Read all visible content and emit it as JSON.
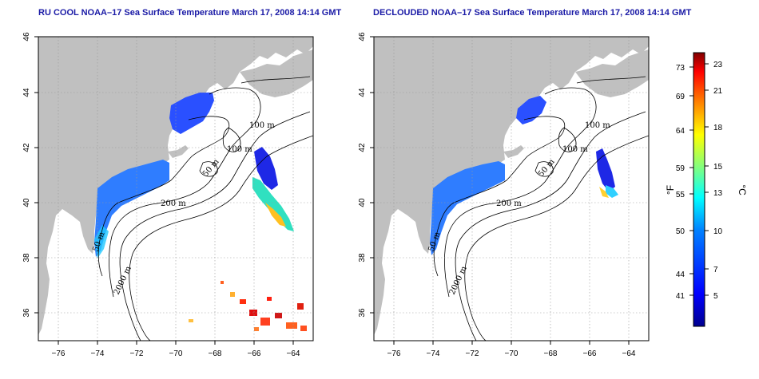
{
  "panels": [
    {
      "title": "RU COOL NOAA–17 Sea Surface Temperature March 17, 2008 14:14 GMT",
      "contour_labels": [
        "100 m",
        "100 m",
        "50 m",
        "200 m",
        "50 m",
        "2000 m"
      ]
    },
    {
      "title": "DECLOUDED NOAA–17 Sea Surface Temperature March 17, 2008 14:14 GMT",
      "contour_labels": [
        "100 m",
        "100 m",
        "50 m",
        "200 m",
        "50 m",
        "2000 m"
      ]
    }
  ],
  "axes": {
    "x_ticks": [
      "−76",
      "−74",
      "−72",
      "−70",
      "−68",
      "−66",
      "−64"
    ],
    "y_ticks": [
      "46",
      "44",
      "42",
      "40",
      "38",
      "36"
    ],
    "x_range": [
      -77,
      -63
    ],
    "y_range": [
      35,
      46
    ]
  },
  "colorbar": {
    "fahrenheit_label": "°F",
    "celsius_label": "°C",
    "fahrenheit_ticks": [
      "73",
      "69",
      "64",
      "59",
      "55",
      "50",
      "44",
      "41"
    ],
    "celsius_ticks": [
      "23",
      "21",
      "18",
      "15",
      "13",
      "10",
      "7",
      "5"
    ],
    "colors": [
      "#00008f",
      "#0000ff",
      "#0080ff",
      "#00ffff",
      "#80ff80",
      "#ffff00",
      "#ff8000",
      "#ff0000",
      "#800000"
    ]
  }
}
